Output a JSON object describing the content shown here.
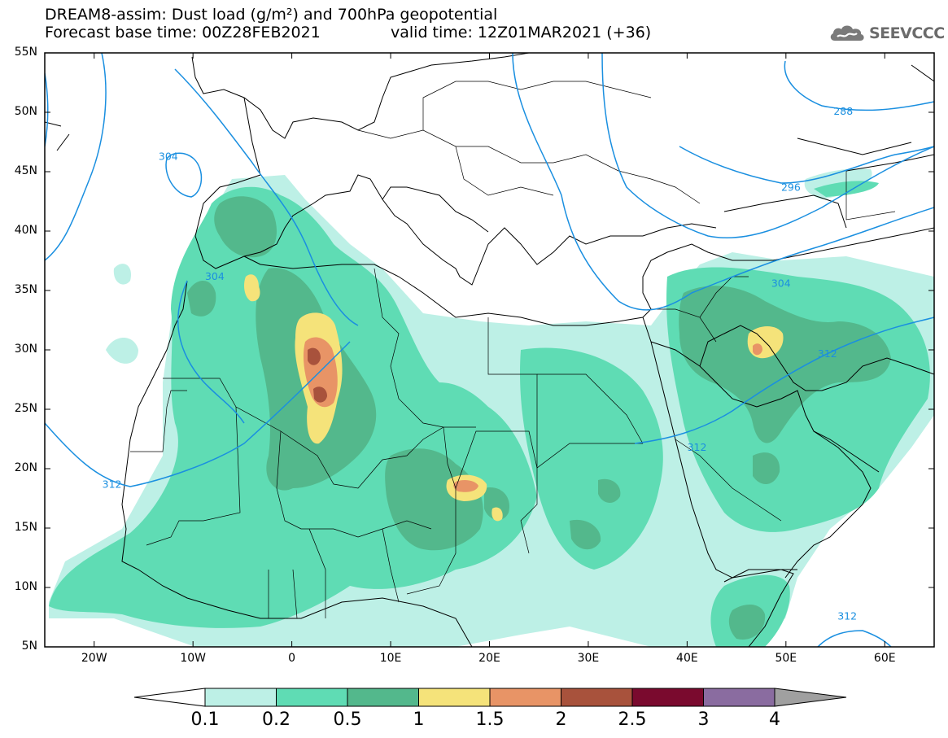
{
  "title_line1": "DREAM8-assim: Dust load (g/m²) and 700hPa geopotential",
  "title_line2": "Forecast base time: 00Z28FEB2021",
  "valid_time": "valid time: 12Z01MAR2021 (+36)",
  "logo": {
    "text": "SEEVCCC",
    "icon": "cloud-logo-icon"
  },
  "map_data": {
    "projection": "lat-lon",
    "lon_range": [
      -25,
      65
    ],
    "lat_range": [
      5,
      55
    ],
    "lat_ticks": [
      "55N",
      "50N",
      "45N",
      "40N",
      "35N",
      "30N",
      "25N",
      "20N",
      "15N",
      "10N",
      "5N"
    ],
    "lon_ticks": [
      {
        "label": "20W",
        "lon": -20
      },
      {
        "label": "10W",
        "lon": -10
      },
      {
        "label": "0",
        "lon": 0
      },
      {
        "label": "10E",
        "lon": 10
      },
      {
        "label": "20E",
        "lon": 20
      },
      {
        "label": "30E",
        "lon": 30
      },
      {
        "label": "40E",
        "lon": 40
      },
      {
        "label": "50E",
        "lon": 50
      },
      {
        "label": "60E",
        "lon": 60
      }
    ],
    "contour_labels": [
      {
        "text": "304",
        "lon": -12.5,
        "lat": 46.3
      },
      {
        "text": "304",
        "lon": -7.8,
        "lat": 36.2
      },
      {
        "text": "312",
        "lon": -18.2,
        "lat": 18.7
      },
      {
        "text": "312",
        "lon": 41,
        "lat": 21.8
      },
      {
        "text": "312",
        "lon": 54.2,
        "lat": 29.7
      },
      {
        "text": "304",
        "lon": 49.5,
        "lat": 35.6
      },
      {
        "text": "296",
        "lon": 50.5,
        "lat": 43.7
      },
      {
        "text": "288",
        "lon": 55.8,
        "lat": 50.1
      },
      {
        "text": "312",
        "lon": 56.2,
        "lat": 7.6
      }
    ]
  },
  "colorbar": {
    "labels": [
      "0.1",
      "0.2",
      "0.5",
      "1",
      "1.5",
      "2",
      "2.5",
      "3",
      "4"
    ],
    "colors": [
      "#bdf0e6",
      "#5fdcb4",
      "#53b88c",
      "#f5e37a",
      "#e89466",
      "#a8523c",
      "#7a0a2e",
      "#8a6ca0"
    ],
    "end_low_color": "#ffffff",
    "end_high_color": "#a0a0a0"
  }
}
